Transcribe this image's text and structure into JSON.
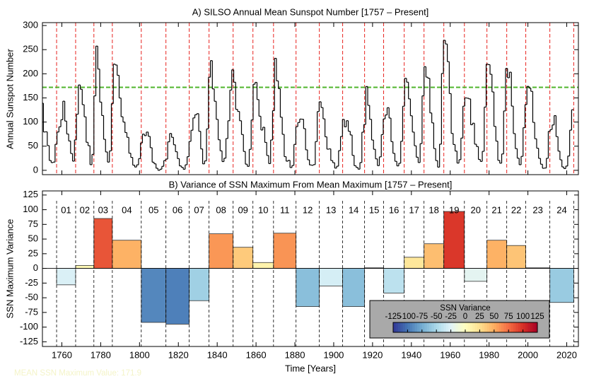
{
  "chart_data": [
    {
      "type": "step",
      "title": "A) SILSO Annual Mean Sunspot Number [1757 – Present]",
      "y_label": "Annual Sunspot Number",
      "x": [
        1750,
        1751,
        1752,
        1753,
        1754,
        1755,
        1756,
        1757,
        1758,
        1759,
        1760,
        1761,
        1762,
        1763,
        1764,
        1765,
        1766,
        1767,
        1768,
        1769,
        1770,
        1771,
        1772,
        1773,
        1774,
        1775,
        1776,
        1777,
        1778,
        1779,
        1780,
        1781,
        1782,
        1783,
        1784,
        1785,
        1786,
        1787,
        1788,
        1789,
        1790,
        1791,
        1792,
        1793,
        1794,
        1795,
        1796,
        1797,
        1798,
        1799,
        1800,
        1801,
        1802,
        1803,
        1804,
        1805,
        1806,
        1807,
        1808,
        1809,
        1810,
        1811,
        1812,
        1813,
        1814,
        1815,
        1816,
        1817,
        1818,
        1819,
        1820,
        1821,
        1822,
        1823,
        1824,
        1825,
        1826,
        1827,
        1828,
        1829,
        1830,
        1831,
        1832,
        1833,
        1834,
        1835,
        1836,
        1837,
        1838,
        1839,
        1840,
        1841,
        1842,
        1843,
        1844,
        1845,
        1846,
        1847,
        1848,
        1849,
        1850,
        1851,
        1852,
        1853,
        1854,
        1855,
        1856,
        1857,
        1858,
        1859,
        1860,
        1861,
        1862,
        1863,
        1864,
        1865,
        1866,
        1867,
        1868,
        1869,
        1870,
        1871,
        1872,
        1873,
        1874,
        1875,
        1876,
        1877,
        1878,
        1879,
        1880,
        1881,
        1882,
        1883,
        1884,
        1885,
        1886,
        1887,
        1888,
        1889,
        1890,
        1891,
        1892,
        1893,
        1894,
        1895,
        1896,
        1897,
        1898,
        1899,
        1900,
        1901,
        1902,
        1903,
        1904,
        1905,
        1906,
        1907,
        1908,
        1909,
        1910,
        1911,
        1912,
        1913,
        1914,
        1915,
        1916,
        1917,
        1918,
        1919,
        1920,
        1921,
        1922,
        1923,
        1924,
        1925,
        1926,
        1927,
        1928,
        1929,
        1930,
        1931,
        1932,
        1933,
        1934,
        1935,
        1936,
        1937,
        1938,
        1939,
        1940,
        1941,
        1942,
        1943,
        1944,
        1945,
        1946,
        1947,
        1948,
        1949,
        1950,
        1951,
        1952,
        1953,
        1954,
        1955,
        1956,
        1957,
        1958,
        1959,
        1960,
        1961,
        1962,
        1963,
        1964,
        1965,
        1966,
        1967,
        1968,
        1969,
        1970,
        1971,
        1972,
        1973,
        1974,
        1975,
        1976,
        1977,
        1978,
        1979,
        1980,
        1981,
        1982,
        1983,
        1984,
        1985,
        1986,
        1987,
        1988,
        1989,
        1990,
        1991,
        1992,
        1993,
        1994,
        1995,
        1996,
        1997,
        1998,
        1999,
        2000,
        2001,
        2002,
        2003,
        2004,
        2005,
        2006,
        2007,
        2008,
        2009,
        2010,
        2011,
        2012,
        2013,
        2014,
        2015,
        2016,
        2017,
        2018,
        2019,
        2020,
        2021,
        2022,
        2023
      ],
      "values": [
        139.0,
        79.5,
        79.7,
        51.2,
        20.3,
        16.0,
        17.0,
        54.0,
        79.3,
        90.0,
        104.8,
        143.2,
        102.0,
        75.2,
        60.7,
        34.8,
        19.0,
        63.0,
        116.3,
        176.8,
        168.0,
        136.0,
        110.8,
        58.0,
        51.0,
        11.7,
        33.0,
        154.2,
        257.3,
        209.8,
        141.3,
        113.5,
        64.2,
        38.0,
        17.0,
        40.2,
        138.2,
        220.0,
        218.2,
        196.8,
        149.8,
        111.0,
        100.0,
        78.2,
        68.3,
        35.5,
        26.7,
        10.7,
        6.8,
        11.3,
        24.2,
        56.7,
        75.0,
        71.8,
        79.2,
        70.3,
        46.8,
        16.8,
        13.5,
        4.2,
        0.0,
        2.3,
        8.3,
        20.3,
        23.2,
        59.0,
        76.3,
        68.3,
        52.9,
        38.5,
        24.2,
        9.2,
        6.3,
        2.2,
        11.4,
        28.2,
        59.9,
        83.0,
        108.5,
        115.2,
        117.4,
        80.8,
        44.3,
        13.4,
        19.5,
        85.8,
        192.9,
        227.3,
        168.7,
        143.0,
        105.5,
        63.3,
        40.3,
        18.1,
        25.1,
        65.8,
        102.7,
        166.3,
        208.3,
        182.5,
        126.3,
        122.0,
        102.7,
        74.1,
        39.0,
        12.7,
        8.2,
        43.4,
        104.4,
        178.3,
        182.2,
        146.6,
        112.1,
        83.5,
        89.2,
        57.8,
        30.7,
        13.9,
        62.8,
        123.6,
        232.0,
        185.3,
        169.2,
        110.1,
        74.5,
        28.3,
        18.9,
        20.7,
        5.7,
        10.0,
        53.7,
        90.5,
        99.0,
        106.1,
        105.8,
        86.3,
        42.4,
        21.8,
        11.2,
        10.4,
        11.8,
        59.5,
        121.7,
        142.0,
        130.0,
        106.6,
        69.4,
        43.8,
        44.4,
        20.2,
        15.7,
        4.6,
        8.5,
        40.8,
        70.1,
        105.5,
        90.1,
        102.8,
        80.9,
        73.2,
        30.9,
        9.5,
        6.0,
        2.4,
        16.1,
        79.0,
        95.0,
        173.6,
        134.6,
        105.7,
        62.7,
        43.5,
        23.7,
        9.7,
        27.9,
        74.0,
        106.5,
        114.7,
        129.7,
        108.2,
        59.4,
        35.1,
        18.6,
        9.2,
        14.6,
        60.2,
        132.8,
        190.6,
        182.6,
        148.0,
        113.0,
        79.2,
        50.8,
        27.1,
        16.1,
        55.3,
        154.3,
        214.7,
        193.0,
        190.7,
        118.9,
        98.3,
        45.0,
        20.1,
        6.6,
        54.2,
        200.7,
        269.3,
        261.7,
        225.1,
        159.0,
        76.4,
        53.4,
        39.9,
        15.0,
        22.0,
        66.8,
        132.9,
        150.0,
        149.4,
        148.0,
        94.4,
        97.6,
        54.1,
        49.2,
        22.5,
        18.4,
        39.3,
        131.0,
        220.1,
        218.9,
        198.9,
        162.4,
        91.0,
        60.5,
        20.6,
        14.8,
        33.9,
        123.0,
        211.1,
        191.8,
        203.3,
        133.0,
        76.1,
        44.9,
        25.1,
        11.6,
        28.9,
        88.3,
        136.3,
        173.9,
        170.4,
        163.6,
        99.3,
        65.3,
        45.8,
        24.7,
        12.6,
        4.2,
        4.8,
        24.9,
        80.8,
        84.5,
        94.0,
        113.3,
        69.8,
        39.8,
        21.7,
        7.0,
        3.6,
        8.8,
        29.6,
        83.2,
        125.5
      ],
      "color": "#000000",
      "xlim": [
        1750,
        2026
      ],
      "ylim": [
        -9,
        306
      ],
      "xticks": [
        1760,
        1780,
        1800,
        1820,
        1840,
        1860,
        1880,
        1900,
        1920,
        1940,
        1960,
        1980,
        2000,
        2020
      ],
      "yticks": [
        0,
        50,
        100,
        150,
        200,
        250,
        300
      ],
      "cycle_line_color": "#e8231f",
      "mean_line": 171.9,
      "mean_line_color": "#4fb52b",
      "annotation": "MEAN SSN Maximum Value: 171.9"
    },
    {
      "type": "bar",
      "title": "B) Variance of SSN Maximum From Mean Maximum [1757 – Present]",
      "y_label": "SSN Maximum Variance",
      "x_label": "Time [Years]",
      "categories": [
        "01",
        "02",
        "03",
        "04",
        "05",
        "06",
        "07",
        "08",
        "09",
        "10",
        "11",
        "12",
        "13",
        "14",
        "15",
        "16",
        "17",
        "18",
        "19",
        "20",
        "21",
        "22",
        "23",
        "24"
      ],
      "bins": [
        1757.3,
        1767.1,
        1776.5,
        1786,
        1800.9,
        1813.6,
        1825.6,
        1835.8,
        1848.2,
        1858.4,
        1869,
        1880.6,
        1892.6,
        1904.6,
        1915.9,
        1925.7,
        1936.3,
        1946.5,
        1956.7,
        1967.3,
        1978.9,
        1989.1,
        1998.9,
        2011.3,
        2023.6
      ],
      "values": [
        -28,
        5,
        85,
        48,
        -92,
        -95,
        -55,
        59,
        36,
        10,
        60,
        -65,
        -30,
        -65,
        1,
        -42,
        19,
        42,
        97,
        -22,
        48,
        39,
        1,
        -58
      ],
      "xlim": [
        1750,
        2026
      ],
      "ylim": [
        -133,
        132
      ],
      "xticks": [
        1760,
        1780,
        1800,
        1820,
        1840,
        1860,
        1880,
        1900,
        1920,
        1940,
        1960,
        1980,
        2000,
        2020
      ],
      "yticks": [
        -125,
        -100,
        -75,
        -50,
        -25,
        0,
        25,
        50,
        75,
        100,
        125
      ],
      "colormap": [
        "#313695",
        "#4575b4",
        "#74add1",
        "#abd9e9",
        "#e0f3f8",
        "#ffffbf",
        "#fee090",
        "#fdae61",
        "#f46d43",
        "#d73027",
        "#a50026"
      ],
      "clim": [
        -125,
        125
      ],
      "colorbar_title": "SSN Variance",
      "colorbar_ticks": [
        -125,
        -100,
        -75,
        -50,
        -25,
        0,
        25,
        50,
        75,
        100,
        125
      ]
    }
  ]
}
